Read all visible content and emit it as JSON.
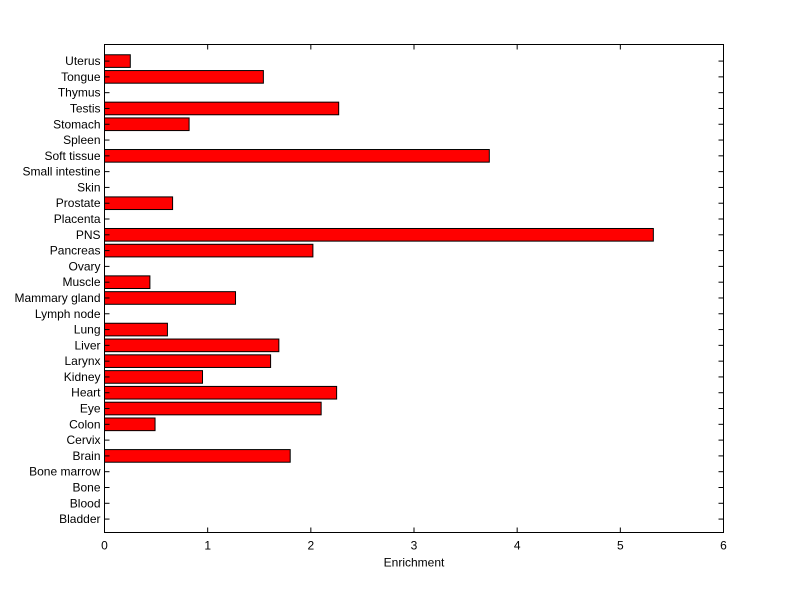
{
  "chart_data": {
    "type": "bar",
    "orientation": "horizontal",
    "categories": [
      "Uterus",
      "Tongue",
      "Thymus",
      "Testis",
      "Stomach",
      "Spleen",
      "Soft tissue",
      "Small intestine",
      "Skin",
      "Prostate",
      "Placenta",
      "PNS",
      "Pancreas",
      "Ovary",
      "Muscle",
      "Mammary gland",
      "Lymph node",
      "Lung",
      "Liver",
      "Larynx",
      "Kidney",
      "Heart",
      "Eye",
      "Colon",
      "Cervix",
      "Brain",
      "Bone marrow",
      "Bone",
      "Blood",
      "Bladder"
    ],
    "values": [
      0.25,
      1.54,
      0,
      2.27,
      0.82,
      0,
      3.73,
      0,
      0,
      0.66,
      0,
      5.32,
      2.02,
      0,
      0.44,
      1.27,
      0,
      0.61,
      1.69,
      1.61,
      0.95,
      2.25,
      2.1,
      0.49,
      0,
      1.8,
      0,
      0,
      0,
      0
    ],
    "xlabel": "Enrichment",
    "ylabel": "",
    "title": "",
    "xlim": [
      0,
      6
    ],
    "xticks": [
      "0",
      "1",
      "2",
      "3",
      "4",
      "5",
      "6"
    ],
    "grid": false,
    "bar_color": "#ff0000",
    "bar_edge_color": "#000000"
  }
}
